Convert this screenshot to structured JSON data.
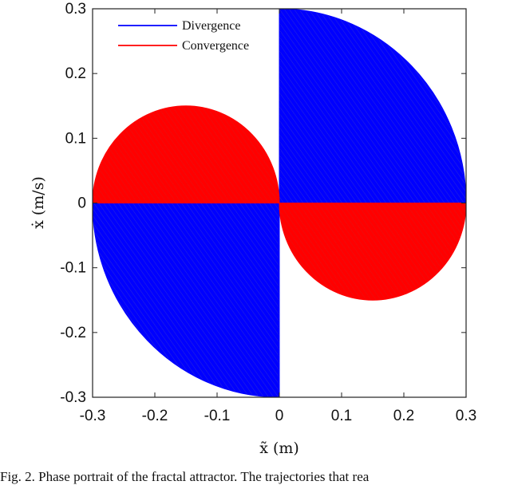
{
  "chart_data": {
    "type": "area",
    "xlabel": "x̃ (m)",
    "ylabel": "ẋ (m/s)",
    "xlim": [
      -0.3,
      0.3
    ],
    "ylim": [
      -0.3,
      0.3
    ],
    "x_ticks": [
      "-0.3",
      "-0.2",
      "-0.1",
      "0",
      "0.1",
      "0.2",
      "0.3"
    ],
    "y_ticks": [
      "0.3",
      "0.2",
      "0.1",
      "0",
      "-0.1",
      "-0.2",
      "-0.3"
    ],
    "grid": false,
    "legend_position": "top-left",
    "series": [
      {
        "name": "Divergence",
        "color": "#0000ff",
        "regions": [
          {
            "x_range": [
              0,
              0.3
            ],
            "y_range": [
              0,
              0.3
            ],
            "boundary": "from (0, 0.3) curving to (0.3, 0)"
          },
          {
            "x_range": [
              -0.3,
              0
            ],
            "y_range": [
              -0.3,
              0
            ],
            "boundary": "from (-0.3, 0) curving to (0, -0.3)"
          }
        ]
      },
      {
        "name": "Convergence",
        "color": "#ff0000",
        "regions": [
          {
            "x_range": [
              -0.3,
              0
            ],
            "y_range": [
              0,
              0.15
            ],
            "center": [
              -0.15,
              0
            ]
          },
          {
            "x_range": [
              0,
              0.3
            ],
            "y_range": [
              -0.15,
              0
            ],
            "center": [
              0.15,
              0
            ]
          }
        ]
      }
    ]
  },
  "caption": "Fig. 2.   Phase portrait of the fractal attractor. The trajectories that rea"
}
